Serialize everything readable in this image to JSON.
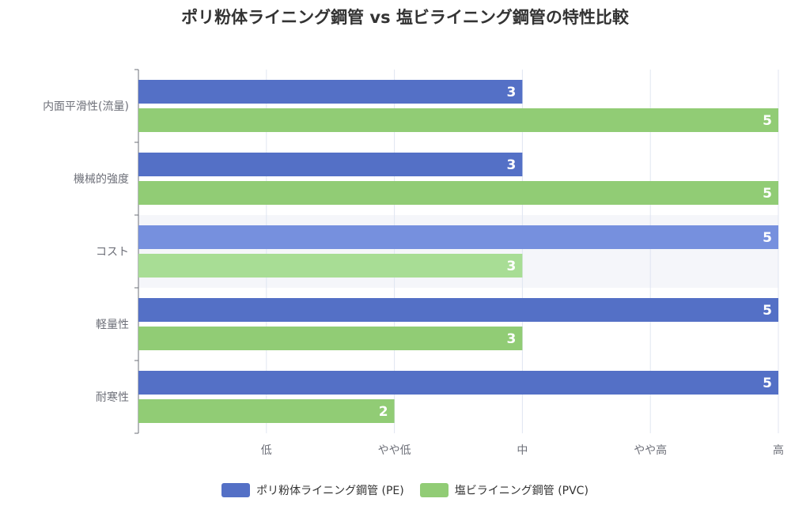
{
  "chart_data": {
    "type": "bar",
    "orientation": "horizontal",
    "title": "ポリ粉体ライニング鋼管 vs 塩ビライニング鋼管の特性比較",
    "categories": [
      "内面平滑性(流量)",
      "機械的強度",
      "コスト",
      "軽量性",
      "耐寒性"
    ],
    "x_ticks": [
      "低",
      "やや低",
      "中",
      "やや高",
      "高"
    ],
    "xlim": [
      0,
      5
    ],
    "series": [
      {
        "name": "ポリ粉体ライニング鋼管 (PE)",
        "color": "#5470c6",
        "values": [
          3,
          3,
          5,
          5,
          5
        ]
      },
      {
        "name": "塩ビライニング鋼管 (PVC)",
        "color": "#91cc75",
        "values": [
          5,
          5,
          3,
          3,
          2
        ]
      }
    ],
    "highlighted_category": "コスト",
    "highlight_colors": {
      "band": "#f5f6fa",
      "pe": "#7690de",
      "pvc": "#a8dd95"
    },
    "grid": true,
    "legend_position": "bottom",
    "data_labels": true
  }
}
